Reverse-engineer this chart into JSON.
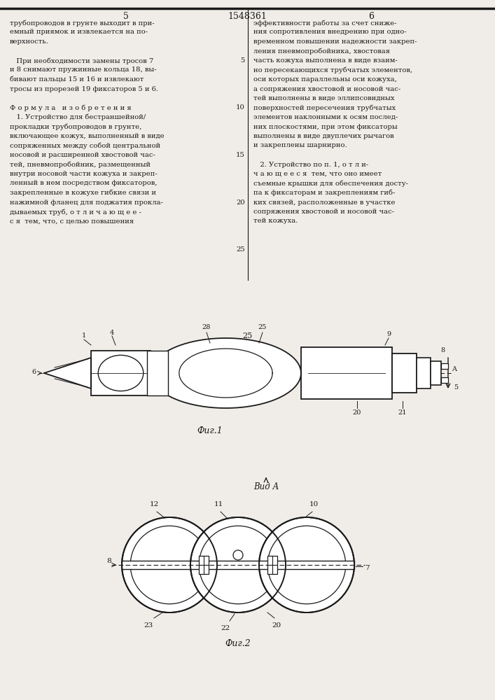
{
  "bg_color": "#f0ede8",
  "line_color": "#1a1a1a",
  "text_color": "#1a1a1a",
  "page_header": "1548361",
  "page_left": "5",
  "page_right": "6",
  "left_col_lines": [
    "трубопроводов в грунте выходит в при-",
    "емный приямок и извлекается на по-",
    "верхность.",
    "",
    "   При необходимости замены тросов 7",
    "и 8 снимают пружинные кольца 18, вы-",
    "бивают пальцы 15 и 16 и извлекают",
    "тросы из прорезей 19 фиксаторов 5 и 6.",
    "",
    "Ф о р м у л а   и з о б р е т е н и я",
    "   1. Устройство для бестраншейной/",
    "прокладки трубопроводов в грунте,",
    "включающее кожух, выполненный в виде",
    "сопряженных между собой центральной",
    "носовой и расширенной хвостовой час-",
    "тей, пневмопробойник, размещенный",
    "внутри носовой части кожуха и закреп-",
    "ленный в нем посредством фиксаторов,",
    "закрепленные в кожухе гибкие связи и",
    "нажимной фланец для поджатия прокла-",
    "дываемых труб, о т л и ч а ю щ е е -",
    "с я  тем, что, с целью повышения"
  ],
  "right_col_lines": [
    "эффективности работы за счет сниже-",
    "ния сопротивления внедрению при одно-",
    "временном повышении надежности закреп-",
    "ления пневмопробойника, хвостовая",
    "часть кожуха выполнена в виде взаим-",
    "но пересекающихся трубчатых элементов,",
    "оси которых параллельны оси кожуха,",
    "а сопряжения хвостовой и носовой час-",
    "тей выполнены в виде эллипсовидных",
    "поверхностей пересечения трубчатых",
    "элементов наклонными к осям послед-",
    "них плоскостями, при этом фиксаторы",
    "выполнены в виде двуплечих рычагов",
    "и закреплены шарнирно.",
    "",
    "   2. Устройство по п. 1, о т л и-",
    "ч а ю щ е е с я  тем, что оно имеет",
    "съемные крышки для обеспечения досту-",
    "па к фиксаторам и закреплениям гиб-",
    "ких связей, расположенные в участке",
    "сопряжения хвостовой и носовой час-",
    "тей кожуха."
  ],
  "fig1_caption": "Фиг.1",
  "fig2_caption": "Фиг.2",
  "vid_a_label": "Вид А"
}
